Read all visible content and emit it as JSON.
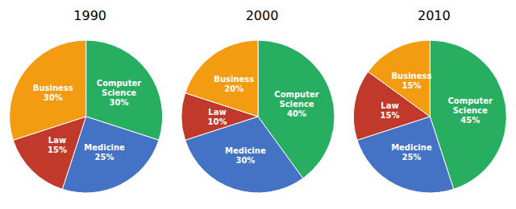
{
  "chart_data": [
    {
      "type": "pie",
      "title": "1990",
      "categories": [
        "Computer\nScience",
        "Medicine",
        "Law",
        "Business"
      ],
      "values": [
        30,
        25,
        15,
        30
      ],
      "value_labels": [
        "30%",
        "25%",
        "15%",
        "30%"
      ],
      "colors": [
        "#27AE60",
        "#4472C4",
        "#C0392B",
        "#F39C12"
      ],
      "data_labels": true,
      "legend": false
    },
    {
      "type": "pie",
      "title": "2000",
      "categories": [
        "Computer\nScience",
        "Medicine",
        "Law",
        "Business"
      ],
      "values": [
        40,
        30,
        10,
        20
      ],
      "value_labels": [
        "40%",
        "30%",
        "10%",
        "20%"
      ],
      "colors": [
        "#27AE60",
        "#4472C4",
        "#C0392B",
        "#F39C12"
      ],
      "data_labels": true,
      "legend": false
    },
    {
      "type": "pie",
      "title": "2010",
      "categories": [
        "Computer\nScience",
        "Medicine",
        "Law",
        "Business"
      ],
      "values": [
        45,
        25,
        15,
        15
      ],
      "value_labels": [
        "45%",
        "25%",
        "15%",
        "15%"
      ],
      "colors": [
        "#27AE60",
        "#4472C4",
        "#C0392B",
        "#F39C12"
      ],
      "data_labels": true,
      "legend": false
    }
  ]
}
